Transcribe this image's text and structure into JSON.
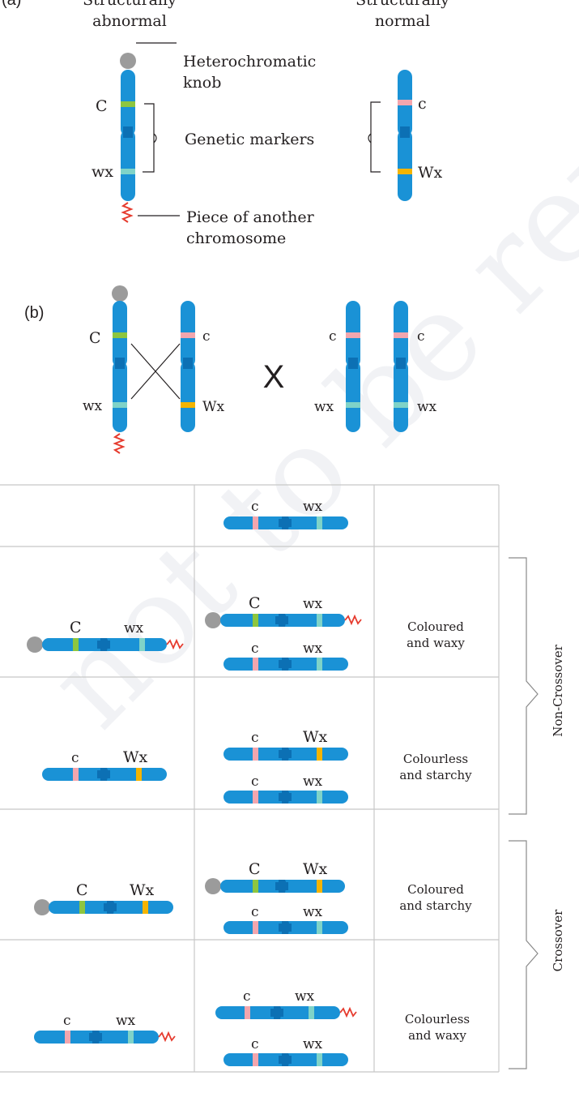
{
  "colors": {
    "chromosome": "#1a92d6",
    "centromere": "#0c70b4",
    "marker_C": "#8dc63f",
    "marker_c": "#f2a6ae",
    "marker_Wx": "#f4b400",
    "marker_wx": "#7fd3c8",
    "knob": "#9b9b9b",
    "extra_piece": "#e63b2e",
    "grid_line": "#c8c8c8",
    "text": "#231f20"
  },
  "part_a": {
    "label": "(a)",
    "abnormal_heading_line1": "Structurally",
    "abnormal_heading_line2": "abnormal",
    "normal_heading_line1": "Structurally",
    "normal_heading_line2": "normal",
    "knob_label_line1": "Heterochromatic",
    "knob_label_line2": "knob",
    "markers_label": "Genetic markers",
    "piece_label_line1": "Piece of another",
    "piece_label_line2": "chromosome",
    "abnormal_marker_top": "C",
    "abnormal_marker_bottom": "wx",
    "normal_marker_top": "c",
    "normal_marker_bottom": "Wx"
  },
  "part_b": {
    "label": "(b)",
    "cross_symbol": "X",
    "left_pair": {
      "chr1_top": "C",
      "chr1_bottom": "wx",
      "chr2_top": "c",
      "chr2_bottom": "Wx"
    },
    "right_pair": {
      "chr1_top": "c",
      "chr1_bottom": "wx",
      "chr2_top": "c",
      "chr2_bottom": "wx"
    }
  },
  "table": {
    "header_gamete": {
      "left": "c",
      "right": "wx"
    },
    "rows": [
      {
        "gamete": {
          "left": "C",
          "right": "wx"
        },
        "progeny_top": {
          "left": "C",
          "right": "wx"
        },
        "progeny_bottom": {
          "left": "c",
          "right": "wx"
        },
        "phenotype_line1": "Coloured",
        "phenotype_line2": "and waxy"
      },
      {
        "gamete": {
          "left": "c",
          "right": "Wx"
        },
        "progeny_top": {
          "left": "c",
          "right": "Wx"
        },
        "progeny_bottom": {
          "left": "c",
          "right": "wx"
        },
        "phenotype_line1": "Colourless",
        "phenotype_line2": "and starchy"
      },
      {
        "gamete": {
          "left": "C",
          "right": "Wx"
        },
        "progeny_top": {
          "left": "C",
          "right": "Wx"
        },
        "progeny_bottom": {
          "left": "c",
          "right": "wx"
        },
        "phenotype_line1": "Coloured",
        "phenotype_line2": "and starchy"
      },
      {
        "gamete": {
          "left": "c",
          "right": "wx"
        },
        "progeny_top": {
          "left": "c",
          "right": "wx"
        },
        "progeny_bottom": {
          "left": "c",
          "right": "wx"
        },
        "phenotype_line1": "Colourless",
        "phenotype_line2": "and waxy"
      }
    ],
    "group_non_crossover": "Non-Crossover",
    "group_crossover": "Crossover"
  }
}
